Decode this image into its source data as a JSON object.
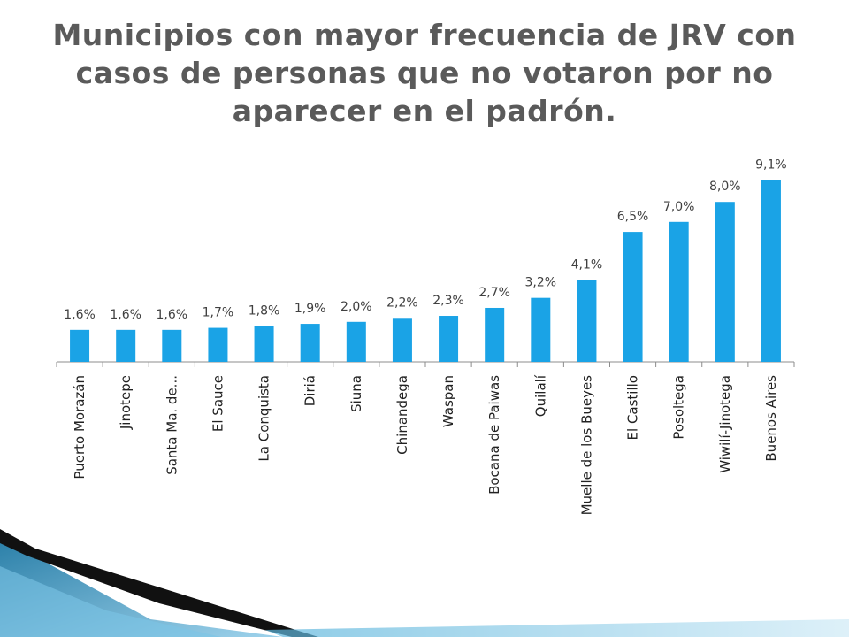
{
  "title_lines": [
    "Municipios con mayor frecuencia de JRV con",
    "casos de personas que no votaron por no",
    "aparecer en el padrón."
  ],
  "colors": {
    "bar": "#1aa3e6",
    "title": "#5a5a5a",
    "axis": "#8c8c8c",
    "text": "#404040"
  },
  "chart_data": {
    "type": "bar",
    "title": "Municipios con mayor frecuencia de JRV con casos de personas que no votaron por no aparecer en el padrón.",
    "categories": [
      "Puerto Morazán",
      "Jinotepe",
      "Santa Ma. de...",
      "El Sauce",
      "La Conquista",
      "Diriá",
      "Siuna",
      "Chinandega",
      "Waspan",
      "Bocana de Paiwas",
      "Quilalí",
      "Muelle de los Bueyes",
      "El Castillo",
      "Posoltega",
      "Wiwilí-Jinotega",
      "Buenos Aires"
    ],
    "values": [
      1.6,
      1.6,
      1.6,
      1.7,
      1.8,
      1.9,
      2.0,
      2.2,
      2.3,
      2.7,
      3.2,
      4.1,
      6.5,
      7.0,
      8.0,
      9.1
    ],
    "data_labels": [
      "1,6%",
      "1,6%",
      "1,6%",
      "1,7%",
      "1,8%",
      "1,9%",
      "2,0%",
      "2,2%",
      "2,3%",
      "2,7%",
      "3,2%",
      "4,1%",
      "6,5%",
      "7,0%",
      "8,0%",
      "9,1%"
    ],
    "unit": "%",
    "ylim": [
      0,
      10
    ],
    "grid": false,
    "legend": "none"
  }
}
